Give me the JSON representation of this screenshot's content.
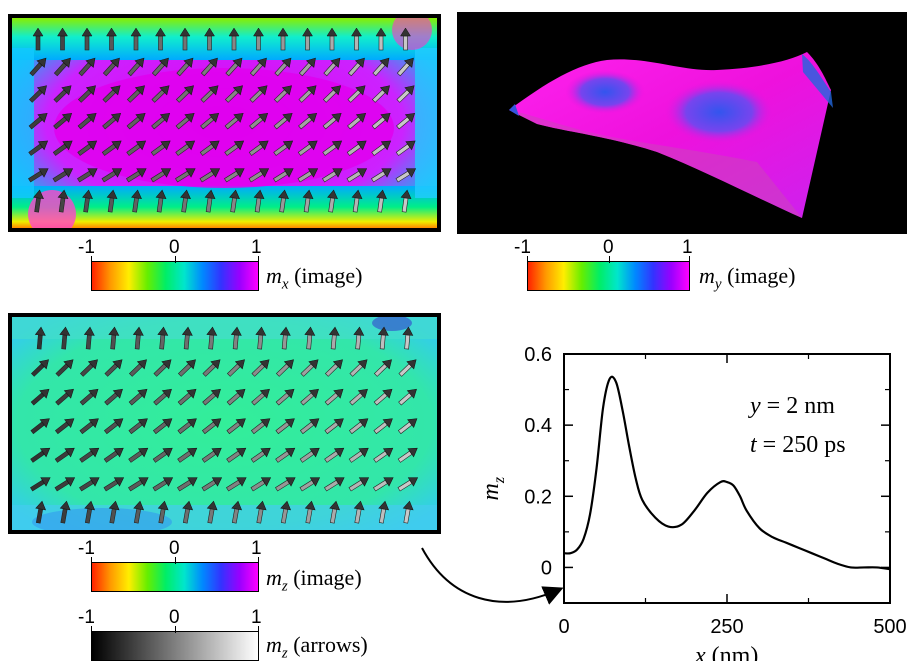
{
  "panels": {
    "mx": {
      "colorbar": {
        "tick_labels": [
          "-1",
          "0",
          "1"
        ],
        "label_var": "m",
        "label_sub": "x",
        "label_suffix": " (image)"
      }
    },
    "my": {
      "colorbar": {
        "tick_labels": [
          "-1",
          "0",
          "1"
        ],
        "label_var": "m",
        "label_sub": "y",
        "label_suffix": " (image)"
      }
    },
    "mz": {
      "colorbar_image": {
        "tick_labels": [
          "-1",
          "0",
          "1"
        ],
        "label_var": "m",
        "label_sub": "z",
        "label_suffix": " (image)"
      },
      "colorbar_arrows": {
        "tick_labels": [
          "-1",
          "0",
          "1"
        ],
        "label_var": "m",
        "label_sub": "z",
        "label_suffix": " (arrows)"
      }
    }
  },
  "colors": {
    "frame": "#000000",
    "black_background": "#000000",
    "hue_scale": [
      "#ff2200",
      "#ff9900",
      "#ffee00",
      "#66ee00",
      "#00ee66",
      "#00e6cc",
      "#0088ff",
      "#3333ff",
      "#9900ff",
      "#ff00ff"
    ],
    "gray_scale": [
      "#000000",
      "#ffffff"
    ],
    "mx_field_main": "#e000ee",
    "mz_field_main": "#33ee99",
    "mz_field_edge": "#33ddee"
  },
  "chart_data": {
    "type": "line",
    "xlabel_var": "x",
    "xlabel_unit": " (nm)",
    "ylabel_var": "m",
    "ylabel_sub": "z",
    "xlim": [
      0,
      500
    ],
    "ylim": [
      -0.1,
      0.6
    ],
    "xticks": [
      0,
      250,
      500
    ],
    "yticks": [
      0,
      0.2,
      0.4,
      0.6
    ],
    "ytick_labels": [
      "0",
      "0.2",
      "0.4",
      "0.6"
    ],
    "xtick_labels": [
      "0",
      "250",
      "500"
    ],
    "annotations": [
      "y = 2 nm",
      "t = 250 ps"
    ],
    "series": [
      {
        "x": [
          0,
          10,
          20,
          30,
          40,
          50,
          60,
          70,
          80,
          90,
          100,
          110,
          120,
          140,
          160,
          180,
          200,
          220,
          240,
          250,
          260,
          270,
          280,
          300,
          320,
          340,
          360,
          380,
          400,
          420,
          440,
          460,
          480,
          500
        ],
        "values": [
          0.04,
          0.04,
          0.05,
          0.08,
          0.15,
          0.28,
          0.45,
          0.53,
          0.52,
          0.44,
          0.34,
          0.25,
          0.19,
          0.14,
          0.115,
          0.12,
          0.16,
          0.21,
          0.24,
          0.24,
          0.23,
          0.2,
          0.16,
          0.11,
          0.085,
          0.07,
          0.055,
          0.04,
          0.025,
          0.01,
          0.0,
          0.0,
          0.0,
          -0.005
        ]
      }
    ]
  }
}
